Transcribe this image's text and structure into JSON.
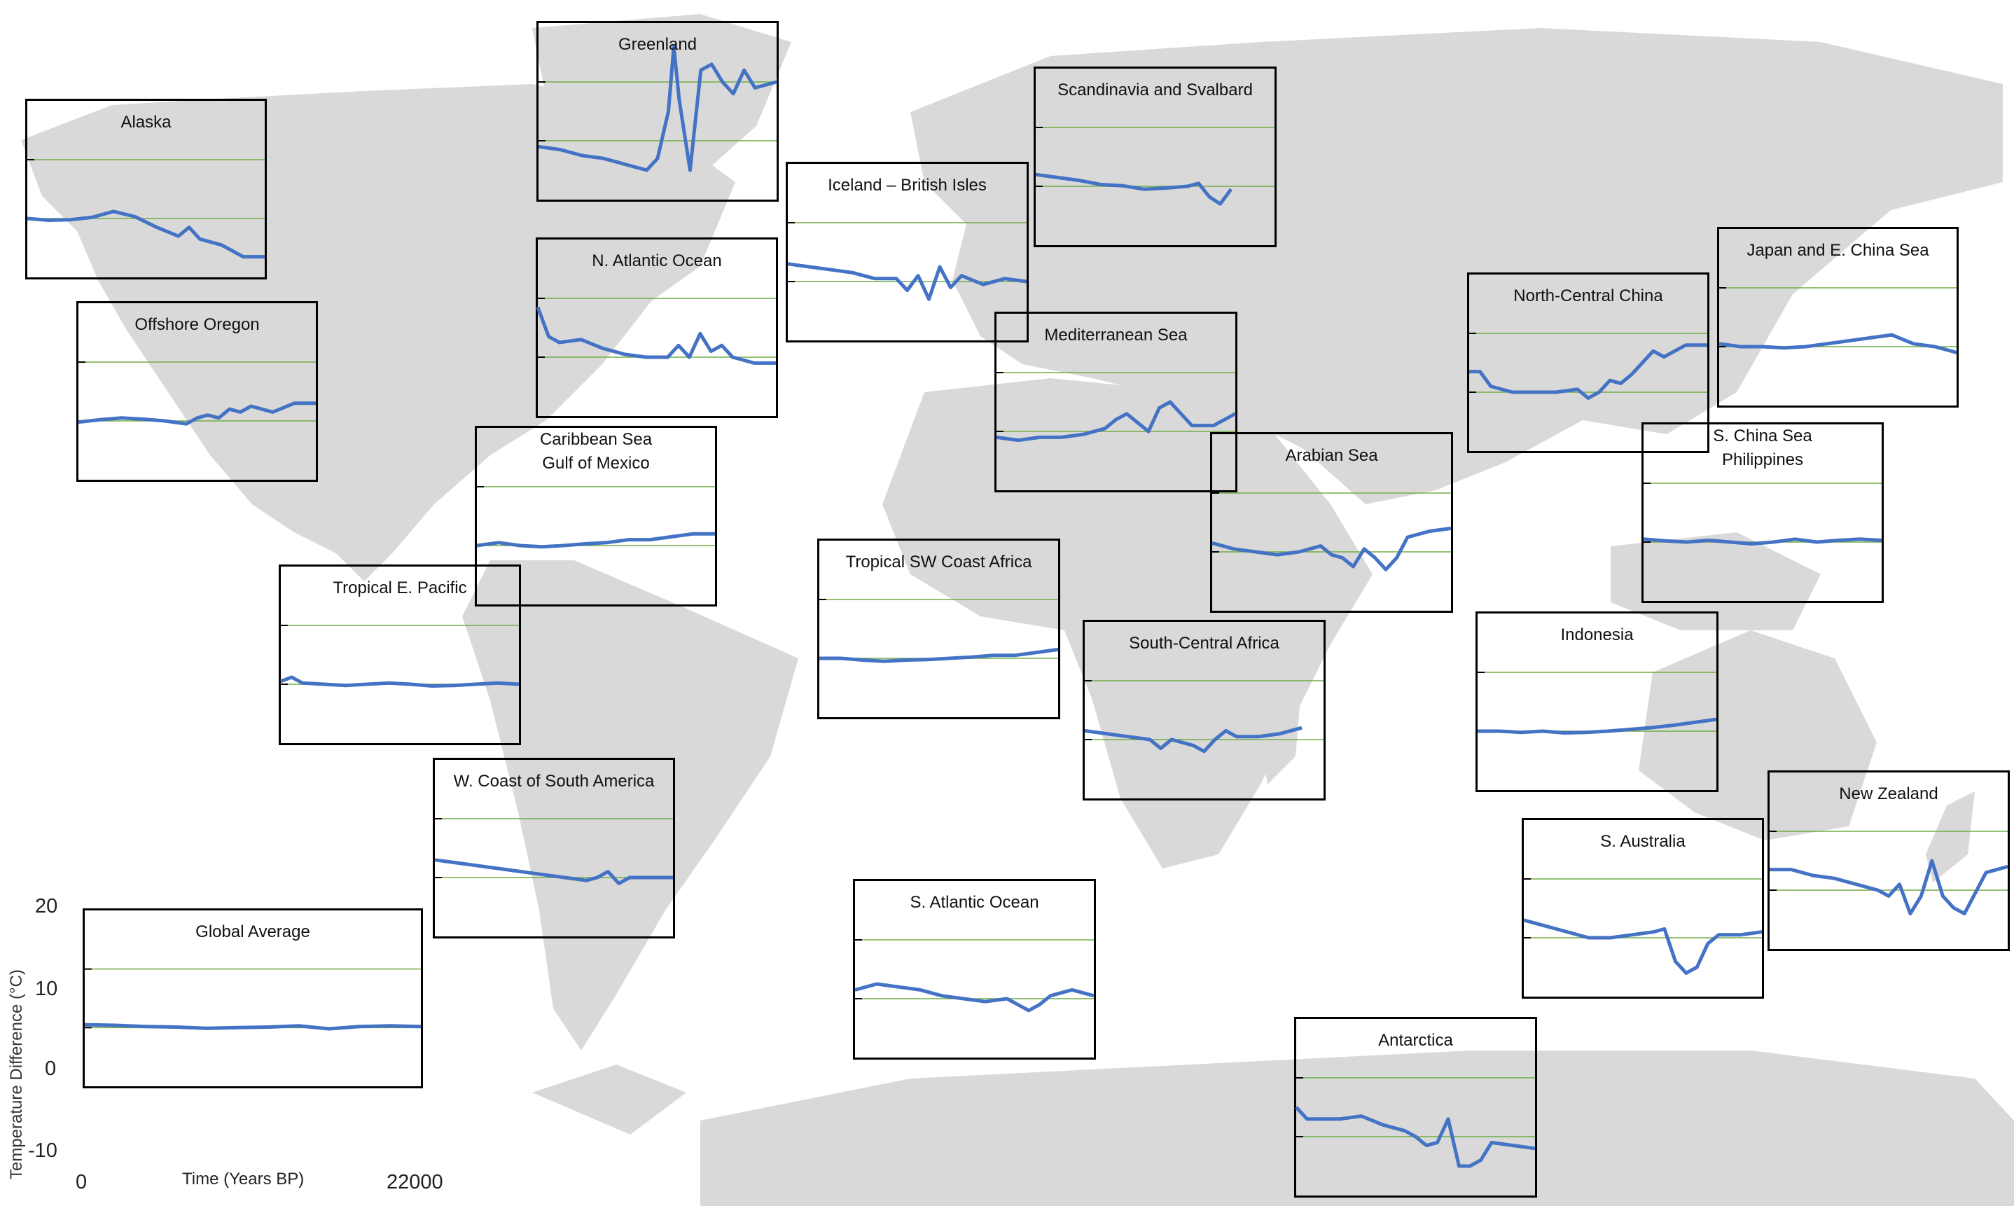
{
  "chart_data": {
    "type": "line",
    "xlabel": "Time (Years BP)",
    "ylabel": "Temperature Difference (°C)",
    "xlim": [
      0,
      22000
    ],
    "ylim": [
      -10,
      20
    ],
    "x_ticks": [
      "0",
      "22000"
    ],
    "y_ticks": [
      "20",
      "10",
      "0",
      "-10"
    ],
    "grid": "horizontal lines at 0 and 10",
    "colors": {
      "series": "#4472c4",
      "grid": "#70ad47",
      "map": "#d9d9d9"
    },
    "panels": [
      {
        "id": "global-average",
        "title": "Global Average",
        "x": [
          0,
          2000,
          4000,
          6000,
          8000,
          10000,
          12000,
          14000,
          16000,
          18000,
          20000,
          22000
        ],
        "y": [
          0.5,
          0.4,
          0.2,
          0.1,
          -0.1,
          0.0,
          0.1,
          0.3,
          -0.2,
          0.2,
          0.3,
          0.2
        ]
      },
      {
        "id": "alaska",
        "title": "Alaska",
        "x": [
          0,
          2000,
          4000,
          6000,
          8000,
          10000,
          12000,
          14000,
          15000,
          16000,
          18000,
          20000,
          22000
        ],
        "y": [
          0,
          -0.3,
          -0.2,
          0.2,
          1.2,
          0.3,
          -1.5,
          -3,
          -1.5,
          -3.5,
          -4.5,
          -6.5,
          -6.5
        ]
      },
      {
        "id": "greenland",
        "title": "Greenland",
        "x": [
          0,
          2000,
          4000,
          6000,
          8000,
          10000,
          11000,
          12000,
          12500,
          13000,
          14000,
          15000,
          16000,
          17000,
          18000,
          19000,
          20000,
          22000
        ],
        "y": [
          -1,
          -1.5,
          -2.5,
          -3,
          -4,
          -5,
          -3,
          5,
          16,
          7,
          -5,
          12,
          13,
          10,
          8,
          12,
          9,
          10
        ]
      },
      {
        "id": "scandinavia-svalbard",
        "title": "Scandinavia and Svalbard",
        "x": [
          0,
          2000,
          4000,
          6000,
          8000,
          10000,
          12000,
          14000,
          15000,
          16000,
          17000,
          18000
        ],
        "y": [
          2,
          1.5,
          1,
          0.3,
          0.1,
          -0.5,
          -0.3,
          0,
          0.5,
          -1.8,
          -3,
          -0.5
        ]
      },
      {
        "id": "iceland-british-isles",
        "title": "Iceland – British Isles",
        "x": [
          0,
          2000,
          4000,
          6000,
          8000,
          10000,
          11000,
          12000,
          13000,
          14000,
          15000,
          16000,
          18000,
          20000,
          22000
        ],
        "y": [
          3,
          2.5,
          2,
          1.5,
          0.5,
          0.5,
          -1.5,
          1,
          -3,
          2.5,
          -1,
          1,
          -0.5,
          0.5,
          0
        ]
      },
      {
        "id": "offshore-oregon",
        "title": "Offshore Oregon",
        "x": [
          0,
          2000,
          4000,
          6000,
          8000,
          10000,
          11000,
          12000,
          13000,
          14000,
          15000,
          16000,
          18000,
          20000,
          22000
        ],
        "y": [
          -0.2,
          0.2,
          0.5,
          0.3,
          0,
          -0.5,
          0.5,
          1,
          0.5,
          2,
          1.5,
          2.5,
          1.5,
          3,
          3
        ]
      },
      {
        "id": "n-atlantic-ocean",
        "title": "N. Atlantic Ocean",
        "x": [
          0,
          1000,
          2000,
          4000,
          6000,
          8000,
          10000,
          12000,
          13000,
          14000,
          15000,
          16000,
          17000,
          18000,
          20000,
          22000
        ],
        "y": [
          8.5,
          3.5,
          2.5,
          3,
          1.5,
          0.5,
          0,
          0,
          2,
          0,
          4,
          1,
          2,
          0,
          -1,
          -1
        ]
      },
      {
        "id": "mediterranean-sea",
        "title": "Mediterranean Sea",
        "x": [
          0,
          2000,
          4000,
          6000,
          8000,
          10000,
          11000,
          12000,
          13000,
          14000,
          15000,
          16000,
          17000,
          18000,
          20000,
          22000
        ],
        "y": [
          -1,
          -1.5,
          -1,
          -1,
          -0.5,
          0.5,
          2,
          3,
          1.5,
          0,
          4,
          5,
          3,
          1,
          1,
          3
        ]
      },
      {
        "id": "north-central-china",
        "title": "North-Central China",
        "x": [
          0,
          1000,
          2000,
          4000,
          6000,
          8000,
          10000,
          11000,
          12000,
          13000,
          14000,
          15000,
          16000,
          17000,
          18000,
          20000,
          22000
        ],
        "y": [
          3.5,
          3.5,
          1,
          0,
          0,
          0,
          0.5,
          -1,
          0,
          2,
          1.5,
          3,
          5,
          7,
          6,
          8,
          8
        ]
      },
      {
        "id": "japan-e-china-sea",
        "title": "Japan and E. China Sea",
        "x": [
          0,
          2000,
          4000,
          6000,
          8000,
          10000,
          12000,
          14000,
          16000,
          18000,
          20000,
          22000
        ],
        "y": [
          0.5,
          0,
          0,
          -0.2,
          0,
          0.5,
          1,
          1.5,
          2,
          0.5,
          0,
          -1
        ]
      },
      {
        "id": "caribbean-gulf-of-mexico",
        "title": "Caribbean Sea\nGulf of Mexico",
        "x": [
          0,
          2000,
          4000,
          6000,
          8000,
          10000,
          12000,
          14000,
          16000,
          18000,
          20000,
          22000
        ],
        "y": [
          0,
          0.5,
          0,
          -0.2,
          0,
          0.3,
          0.5,
          1,
          1,
          1.5,
          2,
          2
        ]
      },
      {
        "id": "arabian-sea",
        "title": "Arabian Sea",
        "x": [
          0,
          2000,
          4000,
          6000,
          8000,
          10000,
          11000,
          12000,
          13000,
          14000,
          15000,
          16000,
          17000,
          18000,
          20000,
          22000
        ],
        "y": [
          1.5,
          0.5,
          0,
          -0.5,
          0,
          1,
          -0.5,
          -1,
          -2.5,
          0.5,
          -1,
          -3,
          -1,
          2.5,
          3.5,
          4
        ]
      },
      {
        "id": "s-china-sea-philippines",
        "title": "S. China Sea\nPhilippines",
        "x": [
          0,
          2000,
          4000,
          6000,
          8000,
          10000,
          12000,
          14000,
          16000,
          18000,
          20000,
          22000
        ],
        "y": [
          0.5,
          0.2,
          0,
          0.3,
          0,
          -0.3,
          0,
          0.5,
          0,
          0.3,
          0.5,
          0.3
        ]
      },
      {
        "id": "tropical-e-pacific",
        "title": "Tropical E. Pacific",
        "x": [
          0,
          1000,
          2000,
          4000,
          6000,
          8000,
          10000,
          12000,
          14000,
          16000,
          18000,
          20000,
          22000
        ],
        "y": [
          0.5,
          1.2,
          0.2,
          0,
          -0.2,
          0,
          0.2,
          0,
          -0.3,
          -0.2,
          0,
          0.2,
          0
        ]
      },
      {
        "id": "tropical-sw-coast-africa",
        "title": "Tropical SW Coast Africa",
        "x": [
          0,
          2000,
          4000,
          6000,
          8000,
          10000,
          12000,
          14000,
          16000,
          18000,
          20000,
          22000
        ],
        "y": [
          0,
          0,
          -0.3,
          -0.5,
          -0.3,
          -0.2,
          0,
          0.2,
          0.5,
          0.5,
          1,
          1.5
        ]
      },
      {
        "id": "south-central-africa",
        "title": "South-Central Africa",
        "x": [
          0,
          2000,
          4000,
          6000,
          7000,
          8000,
          10000,
          11000,
          12000,
          13000,
          14000,
          16000,
          18000,
          20000
        ],
        "y": [
          1.5,
          1,
          0.5,
          0,
          -1.5,
          0,
          -1,
          -2,
          0,
          1.5,
          0.5,
          0.5,
          1,
          2
        ]
      },
      {
        "id": "indonesia",
        "title": "Indonesia",
        "x": [
          0,
          2000,
          4000,
          6000,
          8000,
          10000,
          12000,
          14000,
          16000,
          18000,
          20000,
          22000
        ],
        "y": [
          0,
          0,
          -0.2,
          0,
          -0.3,
          -0.2,
          0,
          0.3,
          0.6,
          1,
          1.5,
          2
        ]
      },
      {
        "id": "w-coast-south-america",
        "title": "W. Coast of South America",
        "x": [
          0,
          2000,
          4000,
          6000,
          8000,
          10000,
          12000,
          14000,
          15000,
          16000,
          17000,
          18000,
          20000,
          22000
        ],
        "y": [
          3,
          2.5,
          2,
          1.5,
          1,
          0.5,
          0,
          -0.5,
          0,
          1,
          -1,
          0,
          0,
          0
        ]
      },
      {
        "id": "s-atlantic-ocean",
        "title": "S. Atlantic Ocean",
        "x": [
          0,
          2000,
          4000,
          6000,
          8000,
          10000,
          12000,
          14000,
          15000,
          16000,
          17000,
          18000,
          20000,
          22000
        ],
        "y": [
          1.5,
          2.5,
          2,
          1.5,
          0.5,
          0,
          -0.5,
          0,
          -1,
          -2,
          -1,
          0.5,
          1.5,
          0.5
        ]
      },
      {
        "id": "s-australia",
        "title": "S. Australia",
        "x": [
          0,
          2000,
          4000,
          6000,
          8000,
          10000,
          12000,
          13000,
          14000,
          15000,
          16000,
          17000,
          18000,
          20000,
          22000
        ],
        "y": [
          3,
          2,
          1,
          0,
          0,
          0.5,
          1,
          1.5,
          -4,
          -6,
          -5,
          -1,
          0.5,
          0.5,
          1
        ]
      },
      {
        "id": "new-zealand",
        "title": "New Zealand",
        "x": [
          0,
          2000,
          4000,
          6000,
          8000,
          10000,
          11000,
          12000,
          13000,
          14000,
          15000,
          16000,
          17000,
          18000,
          20000,
          22000
        ],
        "y": [
          3.5,
          3.5,
          2.5,
          2,
          1,
          0,
          -1,
          1,
          -4,
          -1,
          5,
          -1,
          -3,
          -4,
          3,
          4
        ]
      },
      {
        "id": "antarctica",
        "title": "Antarctica",
        "x": [
          0,
          1000,
          2000,
          4000,
          6000,
          8000,
          10000,
          11000,
          12000,
          13000,
          14000,
          15000,
          16000,
          17000,
          18000,
          20000,
          22000
        ],
        "y": [
          5,
          3,
          3,
          3,
          3.5,
          2,
          1,
          0,
          -1.5,
          -1,
          3,
          -5,
          -5,
          -4,
          -1,
          -1.5,
          -2
        ]
      }
    ]
  }
}
